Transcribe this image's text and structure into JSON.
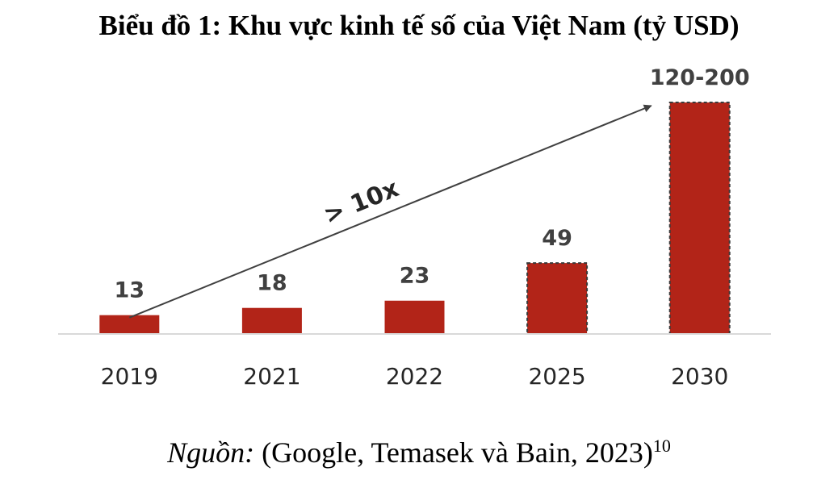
{
  "chart_data": {
    "type": "bar",
    "title": "Biểu đồ 1: Khu vực kinh tế số của Việt Nam (tỷ USD)",
    "categories": [
      "2019",
      "2021",
      "2022",
      "2025",
      "2030"
    ],
    "values": [
      13,
      18,
      23,
      49,
      160
    ],
    "value_labels": [
      "13",
      "18",
      "23",
      "49",
      "120-200"
    ],
    "projected": [
      false,
      false,
      false,
      true,
      true
    ],
    "ylim": [
      0,
      175
    ],
    "grid": false,
    "legend": "none",
    "bar_color": "#B22418",
    "annotation": {
      "text": "> 10x",
      "from_category": "2019",
      "to_category": "2030"
    }
  },
  "source": {
    "label": "Nguồn:",
    "text": "(Google, Temasek và Bain, 2023)",
    "footnote": "10"
  }
}
